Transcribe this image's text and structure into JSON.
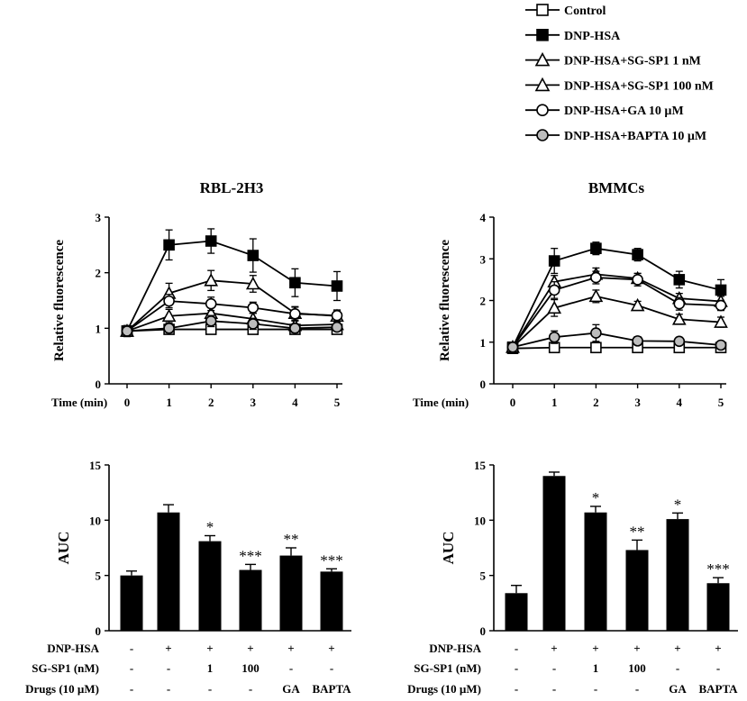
{
  "legend": {
    "items": [
      {
        "label": "Control",
        "marker": "square-open",
        "line": "#000000"
      },
      {
        "label": "DNP-HSA",
        "marker": "square-filled",
        "line": "#000000"
      },
      {
        "label": "DNP-HSA+SG-SP1 1 nM",
        "marker": "triangle-open",
        "line": "#000000"
      },
      {
        "label": "DNP-HSA+SG-SP1 100 nM",
        "marker": "triangle-open",
        "line": "#000000"
      },
      {
        "label": "DNP-HSA+GA 10 µM",
        "marker": "circle-open",
        "line": "#000000"
      },
      {
        "label": "DNP-HSA+BAPTA 10 µM",
        "marker": "circle-gray",
        "line": "#000000"
      }
    ]
  },
  "colors": {
    "bar": "#000000",
    "gray_marker": "#bdbdbd",
    "axis": "#000000"
  },
  "chart_data": [
    {
      "type": "line",
      "title": "RBL-2H3",
      "xlabel": "Time (min)",
      "ylabel": "Relative fluorescence",
      "x": [
        0,
        1,
        2,
        3,
        4,
        5
      ],
      "xticks": [
        "0",
        "1",
        "2",
        "3",
        "4",
        "5"
      ],
      "ylim": [
        0,
        3
      ],
      "yticks": [
        "0",
        "1",
        "2",
        "3"
      ],
      "series": [
        {
          "name": "Control",
          "marker": "square-open",
          "values": [
            0.95,
            0.98,
            0.98,
            0.98,
            0.98,
            0.98
          ],
          "errors": [
            0.05,
            0.05,
            0.06,
            0.08,
            0.08,
            0.06
          ]
        },
        {
          "name": "DNP-HSA",
          "marker": "square-filled",
          "values": [
            0.95,
            2.5,
            2.57,
            2.31,
            1.82,
            1.76
          ],
          "errors": [
            0.1,
            0.27,
            0.22,
            0.3,
            0.25,
            0.26
          ]
        },
        {
          "name": "DNP-HSA+SG-SP1 1 nM",
          "marker": "triangle-open",
          "values": [
            0.95,
            1.22,
            1.27,
            1.17,
            1.05,
            1.07
          ],
          "errors": [
            0.05,
            0.12,
            0.1,
            0.1,
            0.08,
            0.08
          ]
        },
        {
          "name": "DNP-HSA+SG-SP1 100 nM",
          "marker": "triangle-open",
          "values": [
            0.95,
            1.63,
            1.86,
            1.8,
            1.27,
            1.22
          ],
          "errors": [
            0.05,
            0.18,
            0.18,
            0.15,
            0.12,
            0.1
          ]
        },
        {
          "name": "DNP-HSA+GA 10 µM",
          "marker": "circle-open",
          "values": [
            0.95,
            1.49,
            1.44,
            1.37,
            1.26,
            1.23
          ],
          "errors": [
            0.05,
            0.12,
            0.12,
            0.1,
            0.12,
            0.1
          ]
        },
        {
          "name": "DNP-HSA+BAPTA 10 µM",
          "marker": "circle-gray",
          "values": [
            0.95,
            1.0,
            1.13,
            1.08,
            1.0,
            1.02
          ],
          "errors": [
            0.05,
            0.08,
            0.1,
            0.1,
            0.08,
            0.06
          ]
        }
      ]
    },
    {
      "type": "line",
      "title": "BMMCs",
      "xlabel": "Time (min)",
      "ylabel": "Relative fluorescence",
      "x": [
        0,
        1,
        2,
        3,
        4,
        5
      ],
      "xticks": [
        "0",
        "1",
        "2",
        "3",
        "4",
        "5"
      ],
      "ylim": [
        0,
        4
      ],
      "yticks": [
        "0",
        "1",
        "2",
        "3",
        "4"
      ],
      "series": [
        {
          "name": "Control",
          "marker": "square-open",
          "values": [
            0.85,
            0.87,
            0.87,
            0.87,
            0.87,
            0.87
          ],
          "errors": [
            0.05,
            0.05,
            0.05,
            0.05,
            0.05,
            0.05
          ]
        },
        {
          "name": "DNP-HSA",
          "marker": "square-filled",
          "values": [
            0.88,
            2.95,
            3.25,
            3.1,
            2.5,
            2.25
          ],
          "errors": [
            0.08,
            0.3,
            0.15,
            0.15,
            0.2,
            0.25
          ]
        },
        {
          "name": "DNP-HSA+SG-SP1 1 nM",
          "marker": "triangle-open",
          "values": [
            0.88,
            2.45,
            2.63,
            2.53,
            2.05,
            1.98
          ],
          "errors": [
            0.08,
            0.15,
            0.15,
            0.12,
            0.12,
            0.12
          ]
        },
        {
          "name": "DNP-HSA+SG-SP1 100 nM",
          "marker": "triangle-open",
          "values": [
            0.88,
            1.82,
            2.1,
            1.88,
            1.55,
            1.48
          ],
          "errors": [
            0.08,
            0.2,
            0.15,
            0.1,
            0.12,
            0.12
          ]
        },
        {
          "name": "DNP-HSA+GA 10 µM",
          "marker": "circle-open",
          "values": [
            0.88,
            2.25,
            2.55,
            2.5,
            1.92,
            1.88
          ],
          "errors": [
            0.08,
            0.2,
            0.15,
            0.15,
            0.15,
            0.12
          ]
        },
        {
          "name": "DNP-HSA+BAPTA 10 µM",
          "marker": "circle-gray",
          "values": [
            0.88,
            1.12,
            1.22,
            1.03,
            1.02,
            0.93
          ],
          "errors": [
            0.05,
            0.15,
            0.2,
            0.1,
            0.08,
            0.06
          ]
        }
      ]
    },
    {
      "type": "bar",
      "ylabel": "AUC",
      "ylim": [
        0,
        15
      ],
      "yticks": [
        "0",
        "5",
        "10",
        "15"
      ],
      "categories": [
        "Control",
        "DNP-HSA",
        "SG-SP1 1 nM",
        "SG-SP1 100 nM",
        "GA",
        "BAPTA"
      ],
      "values": [
        5.0,
        10.7,
        8.1,
        5.5,
        6.8,
        5.35
      ],
      "errors": [
        0.4,
        0.7,
        0.5,
        0.5,
        0.7,
        0.25
      ],
      "significance": [
        "",
        "",
        "*",
        "***",
        "**",
        "***"
      ],
      "conditions": [
        {
          "label": "DNP-HSA",
          "values": [
            "-",
            "+",
            "+",
            "+",
            "+",
            "+"
          ]
        },
        {
          "label": "SG-SP1 (nM)",
          "values": [
            "-",
            "-",
            "1",
            "100",
            "-",
            "-"
          ]
        },
        {
          "label": "Drugs (10 µM)",
          "values": [
            "-",
            "-",
            "-",
            "-",
            "GA",
            "BAPTA"
          ]
        }
      ]
    },
    {
      "type": "bar",
      "ylabel": "AUC",
      "ylim": [
        0,
        15
      ],
      "yticks": [
        "0",
        "5",
        "10",
        "15"
      ],
      "categories": [
        "Control",
        "DNP-HSA",
        "SG-SP1 1 nM",
        "SG-SP1 100 nM",
        "GA",
        "BAPTA"
      ],
      "values": [
        3.4,
        14.0,
        10.7,
        7.3,
        10.1,
        4.3
      ],
      "errors": [
        0.7,
        0.35,
        0.55,
        0.9,
        0.55,
        0.5
      ],
      "significance": [
        "",
        "",
        "*",
        "**",
        "*",
        "***"
      ],
      "conditions": [
        {
          "label": "DNP-HSA",
          "values": [
            "-",
            "+",
            "+",
            "+",
            "+",
            "+"
          ]
        },
        {
          "label": "SG-SP1 (nM)",
          "values": [
            "-",
            "-",
            "1",
            "100",
            "-",
            "-"
          ]
        },
        {
          "label": "Drugs (10 µM)",
          "values": [
            "-",
            "-",
            "-",
            "-",
            "GA",
            "BAPTA"
          ]
        }
      ]
    }
  ]
}
